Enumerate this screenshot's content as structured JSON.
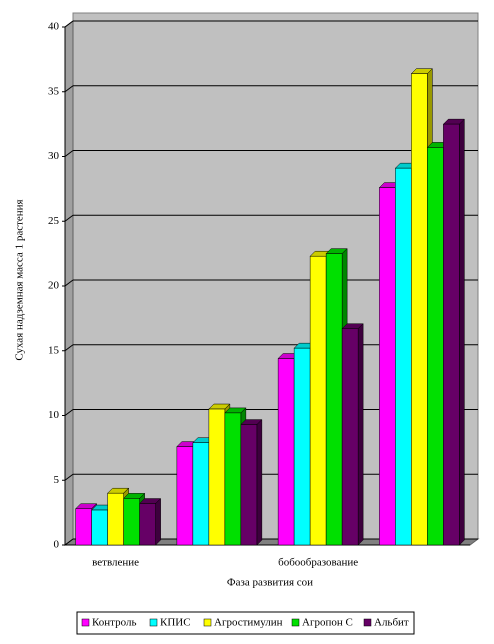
{
  "chart_data": {
    "type": "bar3d",
    "y_label": "Сухая надземная масса 1 растения",
    "x_label": "Фаза развития сои",
    "categories": [
      "ветвление",
      null,
      "бобообразование",
      null
    ],
    "series": [
      {
        "name": "Контроль",
        "color": "#ff00ff",
        "values": [
          2.8,
          7.6,
          14.4,
          27.6
        ]
      },
      {
        "name": "КПИС",
        "color": "#00ffff",
        "values": [
          2.7,
          7.9,
          15.2,
          29.1
        ]
      },
      {
        "name": "Агростимулин",
        "color": "#ffff00",
        "values": [
          4.0,
          10.5,
          22.3,
          36.4
        ]
      },
      {
        "name": "Агропон С",
        "color": "#00e000",
        "values": [
          3.6,
          10.2,
          22.5,
          30.7
        ]
      },
      {
        "name": "Альбит",
        "color": "#660066",
        "values": [
          3.2,
          9.3,
          16.7,
          32.5
        ]
      }
    ],
    "ylim": [
      0,
      40
    ],
    "yticks": [
      0,
      5,
      10,
      15,
      20,
      25,
      30,
      35,
      40
    ],
    "grid": true,
    "legend": "bottom"
  }
}
